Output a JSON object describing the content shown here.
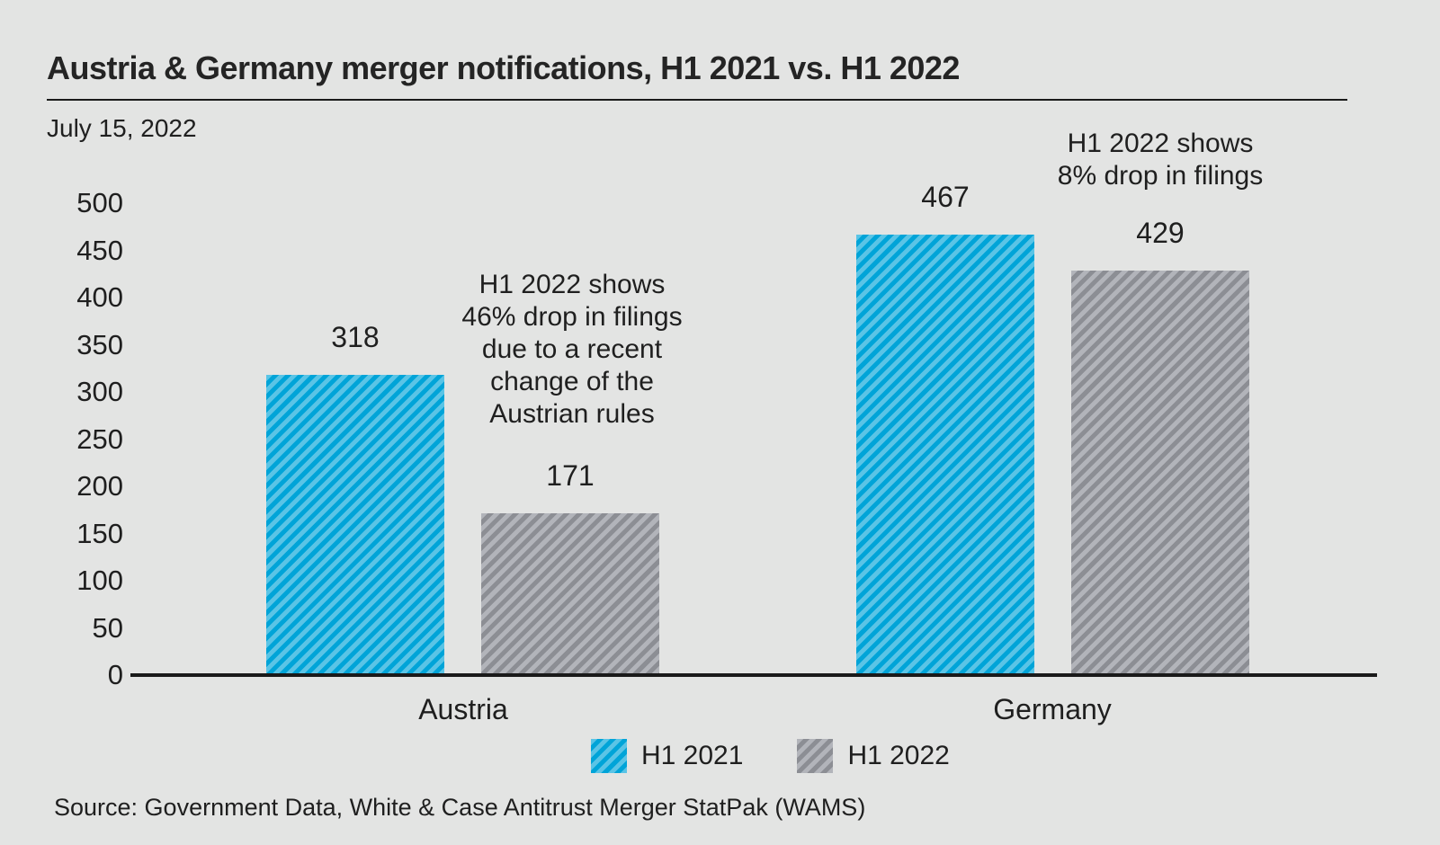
{
  "page": {
    "background_color": "#e3e4e3",
    "text_color": "#1f1f1f",
    "axis_color": "#1a1a1a"
  },
  "header": {
    "title": "Austria & Germany merger notifications, H1 2021 vs. H1 2022",
    "date": "July 15, 2022"
  },
  "chart_data": {
    "type": "bar",
    "title": "Austria & Germany merger notifications, H1 2021 vs. H1 2022",
    "subtitle": "July 15, 2022",
    "categories": [
      "Austria",
      "Germany"
    ],
    "series": [
      {
        "name": "H1 2021",
        "values": [
          318,
          467
        ],
        "color_light": "#5ac4e6",
        "color_dark": "#00a4d8",
        "pattern": "diagonal-hatch"
      },
      {
        "name": "H1 2022",
        "values": [
          171,
          429
        ],
        "color_light": "#b2b4ba",
        "color_dark": "#8c8e94",
        "pattern": "diagonal-hatch"
      }
    ],
    "yticks": [
      0,
      50,
      100,
      150,
      200,
      250,
      300,
      350,
      400,
      450,
      500
    ],
    "ylim": [
      0,
      500
    ],
    "xlabel": "",
    "ylabel": "",
    "grid": false,
    "legend_position": "bottom",
    "annotations": [
      {
        "text": "H1 2022 shows\n46% drop in filings\ndue to a recent\nchange of the\nAustrian rules",
        "position": "above Austria H1 2022 bar"
      },
      {
        "text": "H1 2022 shows\n8% drop in filings",
        "position": "above Germany H1 2022 bar"
      }
    ]
  },
  "footer": {
    "source": "Source: Government Data, White & Case Antitrust Merger StatPak (WAMS)"
  }
}
